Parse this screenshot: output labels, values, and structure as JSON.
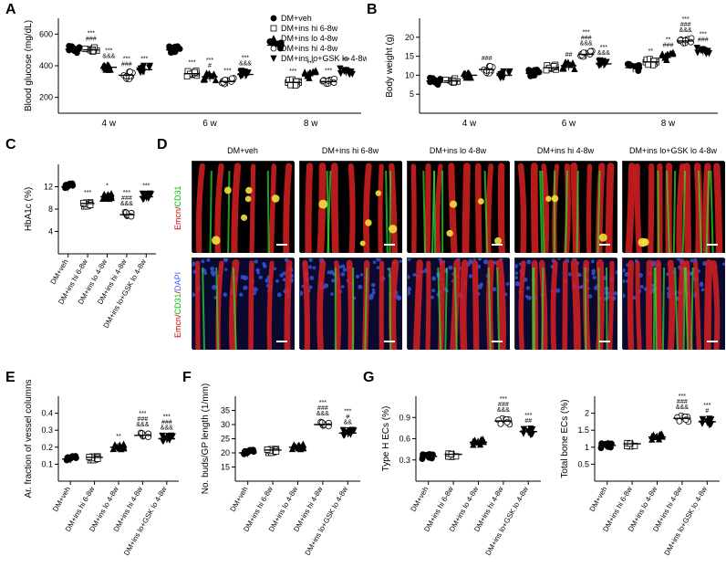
{
  "labels": {
    "A": "A",
    "B": "B",
    "C": "C",
    "D": "D",
    "E": "E",
    "F": "F",
    "G": "G"
  },
  "groups": [
    "DM+veh",
    "DM+ins hi 6-8w",
    "DM+ins lo 4-8w",
    "DM+ins hi 4-8w",
    "DM+ins lo+GSK lo 4-8w"
  ],
  "markers": {
    "shapes": [
      "●",
      "□",
      "▲",
      "○",
      "▼"
    ],
    "fills": [
      "#000000",
      "#ffffff",
      "#000000",
      "#ffffff",
      "#000000"
    ],
    "strokes": [
      "#000000",
      "#000000",
      "#000000",
      "#000000",
      "#000000"
    ]
  },
  "chartA": {
    "title": "Blood glucose (mg/dL)",
    "ylabel": "Blood glucose (mg/dL)",
    "ylim": [
      100,
      700
    ],
    "yticks": [
      200,
      400,
      600
    ],
    "xticks": [
      "4 w",
      "6 w",
      "8 w"
    ],
    "means": [
      [
        505,
        500,
        390,
        340,
        375
      ],
      [
        500,
        350,
        330,
        300,
        345
      ],
      [
        530,
        295,
        345,
        300,
        365
      ]
    ],
    "sig": [
      [
        "",
        "###,***",
        "&&&,***",
        "###,***",
        "***"
      ],
      [
        "",
        "***",
        "#,***",
        "***",
        "&&&,***"
      ],
      [
        "",
        "***",
        "***",
        "***",
        "***"
      ]
    ],
    "bg": "#ffffff",
    "axis_color": "#000000"
  },
  "chartB": {
    "ylabel": "Body weight (g)",
    "ylim": [
      0,
      25
    ],
    "yticks": [
      5,
      10,
      15,
      20
    ],
    "xticks": [
      "4 w",
      "6 w",
      "8 w"
    ],
    "means": [
      [
        8.5,
        8.5,
        10.0,
        11.5,
        10.0
      ],
      [
        10.5,
        12.0,
        12.5,
        15.5,
        13.0
      ],
      [
        12.0,
        13.5,
        15.0,
        19.0,
        16.5
      ]
    ],
    "sig": [
      [
        "",
        "",
        "",
        "###",
        ""
      ],
      [
        "",
        "",
        "##",
        "&&&,###,***",
        "&&&,***"
      ],
      [
        "",
        "**",
        "###,**",
        "&&&,###,***",
        "###,***"
      ]
    ]
  },
  "chartC": {
    "ylabel": "HbA1c (%)",
    "ylim": [
      0,
      16
    ],
    "yticks": [
      4,
      8,
      12
    ],
    "means": [
      12.0,
      9.0,
      10.2,
      7.0,
      10.2
    ],
    "sig": [
      "",
      "***",
      "*",
      "&&&,###,***",
      "***"
    ]
  },
  "chartE": {
    "ylabel": "Ar. fraction of vessel columns",
    "ylim": [
      0.0,
      0.5
    ],
    "yticks": [
      0.1,
      0.2,
      0.3,
      0.4
    ],
    "means": [
      0.13,
      0.14,
      0.2,
      0.27,
      0.25
    ],
    "sig": [
      "",
      "",
      "**",
      "&&&,###,***",
      "&&&,###,***"
    ]
  },
  "chartF": {
    "ylabel": "No. buds/GP length (1/mm)",
    "ylim": [
      10,
      40
    ],
    "yticks": [
      15,
      20,
      25,
      30,
      35
    ],
    "means": [
      20,
      21,
      22,
      30,
      27
    ],
    "sig": [
      "",
      "",
      "",
      "&&&,###,***",
      "&&,#,***"
    ]
  },
  "chartG1": {
    "ylabel": "Type H ECs (%)",
    "ylim": [
      0.0,
      1.2
    ],
    "yticks": [
      0.3,
      0.6,
      0.9
    ],
    "means": [
      0.35,
      0.38,
      0.55,
      0.85,
      0.7
    ],
    "sig": [
      "",
      "",
      "",
      "&&&,###,***",
      "##,***"
    ]
  },
  "chartG2": {
    "ylabel": "Total bone ECs (%)",
    "ylim": [
      0.0,
      2.5
    ],
    "yticks": [
      0.5,
      1.0,
      1.5,
      2.0
    ],
    "means": [
      1.05,
      1.1,
      1.3,
      1.85,
      1.75
    ],
    "sig": [
      "",
      "",
      "",
      "&&&,###,***",
      "#,***"
    ]
  },
  "panelD": {
    "cols": [
      "DM+veh",
      "DM+ins hi 6-8w",
      "DM+ins lo 4-8w",
      "DM+ins hi 4-8w",
      "DM+ins lo+GSK lo 4-8w"
    ],
    "row1_label_red": "Emcn",
    "row1_label_green": "CD31",
    "row2_label_red": "Emcn",
    "row2_label_green": "CD31",
    "row2_label_blue": "DAPI",
    "bg": "#000000",
    "scalebar_color": "#ffffff"
  },
  "style": {
    "font_family": "Arial",
    "tick_fontsize": 9,
    "label_fontsize": 10,
    "panel_fontsize": 16,
    "marker_size": 3,
    "jitter": 4
  }
}
